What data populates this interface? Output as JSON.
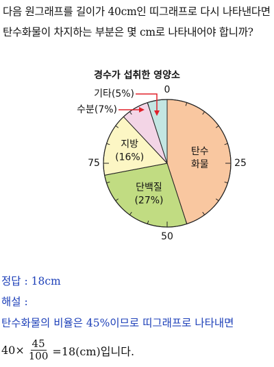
{
  "question": {
    "text": "다음 원그래프를 길이가 40cm인 띠그래프로 다시 나타낸다면 탄수화물이 차지하는 부분은 몇 cm로 나타내어야 합니까?"
  },
  "chart_data": {
    "type": "pie",
    "title": "경수가 섭취한 영양소",
    "slices": [
      {
        "label_lines": [
          "탄수",
          "화물"
        ],
        "value": 45,
        "color": "#f9c7a0"
      },
      {
        "label_lines": [
          "단백질",
          "(27%)"
        ],
        "value": 27,
        "color": "#c1dc82"
      },
      {
        "label_lines": [
          "지방",
          "(16%)"
        ],
        "value": 16,
        "color": "#fcf6c4"
      },
      {
        "label_lines": [
          "수분(7%)"
        ],
        "value": 7,
        "color": "#f3d5e6"
      },
      {
        "label_lines": [
          "기타(5%)"
        ],
        "value": 5,
        "color": "#c3e6e2"
      }
    ],
    "scale_labels": [
      {
        "text": "0",
        "at": 0
      },
      {
        "text": "25",
        "at": 25
      },
      {
        "text": "50",
        "at": 50
      },
      {
        "text": "75",
        "at": 75
      }
    ],
    "tick_step": 5,
    "callout_color": "#e0202a"
  },
  "answer": {
    "line": "정답 : 18cm",
    "explanation_label": "해설 :",
    "explanation": "탄수화물의 비율은 45%이므로 띠그래프로 나타내면",
    "eq_prefix": "40×",
    "eq_num": "45",
    "eq_den": "100",
    "eq_suffix": "=18(cm)입니다."
  }
}
